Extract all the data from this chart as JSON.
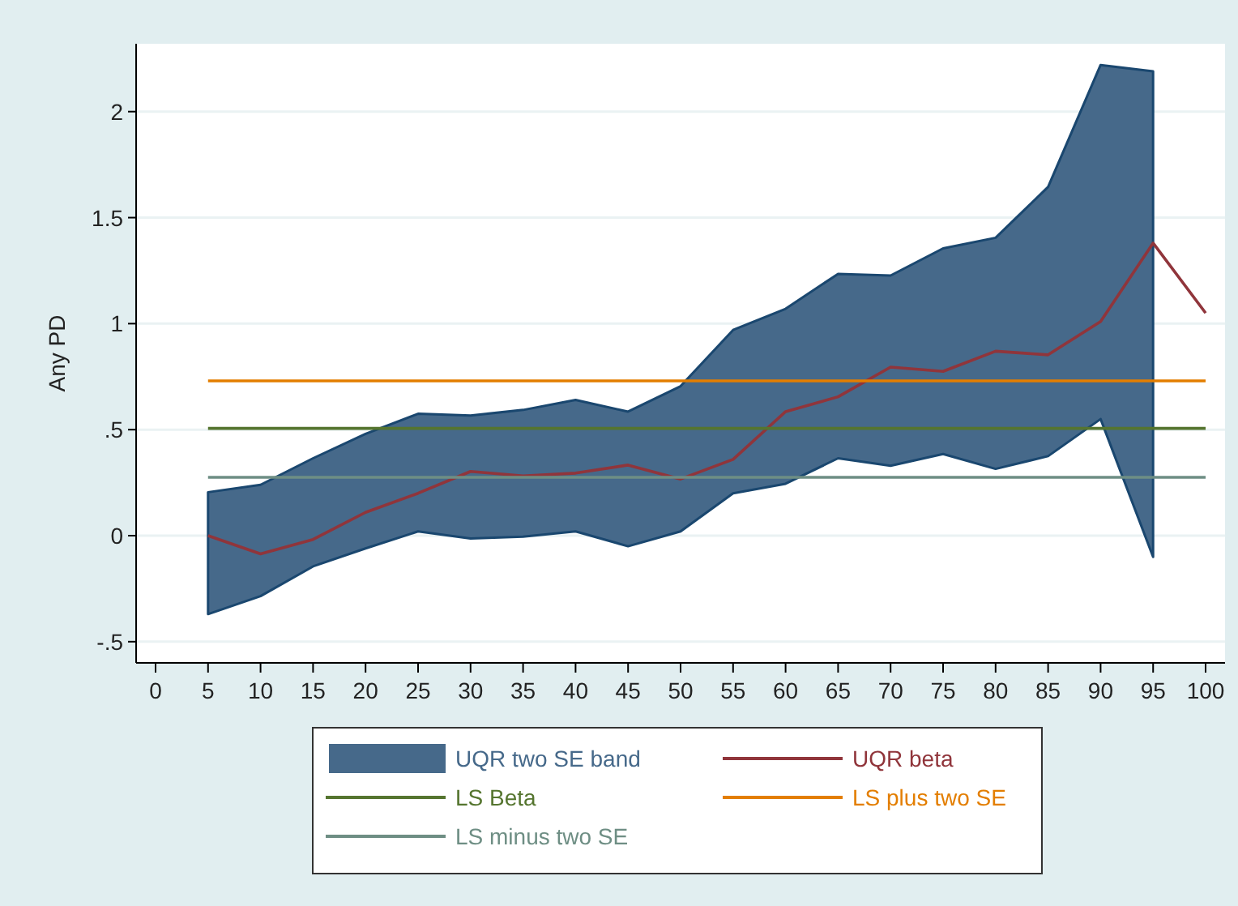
{
  "chart_data": {
    "type": "line",
    "ylabel": "Any PD",
    "xlim": [
      -1.85,
      101.85
    ],
    "ylim": [
      -0.6,
      2.32
    ],
    "xticks": [
      0,
      5,
      10,
      15,
      20,
      25,
      30,
      35,
      40,
      45,
      50,
      55,
      60,
      65,
      70,
      75,
      80,
      85,
      90,
      95,
      100
    ],
    "yticks": [
      {
        "value": -0.5,
        "label": "-.5"
      },
      0,
      {
        "value": 0.5,
        "label": ".5"
      },
      1,
      1.5,
      2
    ],
    "grid": "y",
    "legend": "bottom",
    "series": [
      {
        "type": "area",
        "name": "UQR two SE band",
        "color": "#46698a",
        "x": [
          5,
          10,
          15,
          20,
          25,
          30,
          35,
          40,
          45,
          50,
          55,
          60,
          65,
          70,
          75,
          80,
          85,
          90,
          95
        ],
        "values": [
          null,
          null,
          null,
          null,
          null,
          null,
          null,
          null,
          null,
          null,
          null,
          null,
          null,
          null,
          null,
          null,
          null,
          null,
          null
        ],
        "lower": [
          -0.37,
          -0.285,
          -0.145,
          -0.06,
          0.02,
          -0.013,
          -0.005,
          0.02,
          -0.05,
          0.02,
          0.2,
          0.245,
          0.365,
          0.33,
          0.385,
          0.315,
          0.375,
          0.55,
          -0.1
        ],
        "upper": [
          0.205,
          0.24,
          0.365,
          0.48,
          0.575,
          0.567,
          0.593,
          0.64,
          0.585,
          0.705,
          0.97,
          1.07,
          1.235,
          1.227,
          1.355,
          1.405,
          1.645,
          2.22,
          2.19
        ]
      },
      {
        "type": "line",
        "name": "UQR beta",
        "color": "#90353b",
        "x": [
          5,
          10,
          15,
          20,
          25,
          30,
          35,
          40,
          45,
          50,
          55,
          60,
          65,
          70,
          75,
          80,
          85,
          90,
          95,
          100
        ],
        "values": [
          0,
          -0.086,
          -0.018,
          0.11,
          0.2,
          0.303,
          0.282,
          0.295,
          0.333,
          0.267,
          0.36,
          0.585,
          0.655,
          0.795,
          0.775,
          0.87,
          0.853,
          1.01,
          1.38,
          1.05
        ]
      },
      {
        "type": "line",
        "name": "LS Beta",
        "color": "#55752f",
        "x": [
          5,
          100
        ],
        "values": [
          0.506,
          0.506
        ]
      },
      {
        "type": "line",
        "name": "LS plus two SE",
        "color": "#e37e00",
        "x": [
          5,
          100
        ],
        "values": [
          0.73,
          0.73
        ]
      },
      {
        "type": "line",
        "name": "LS minus two SE",
        "color": "#6e8e84",
        "x": [
          5,
          100
        ],
        "values": [
          0.275,
          0.275
        ]
      }
    ]
  }
}
